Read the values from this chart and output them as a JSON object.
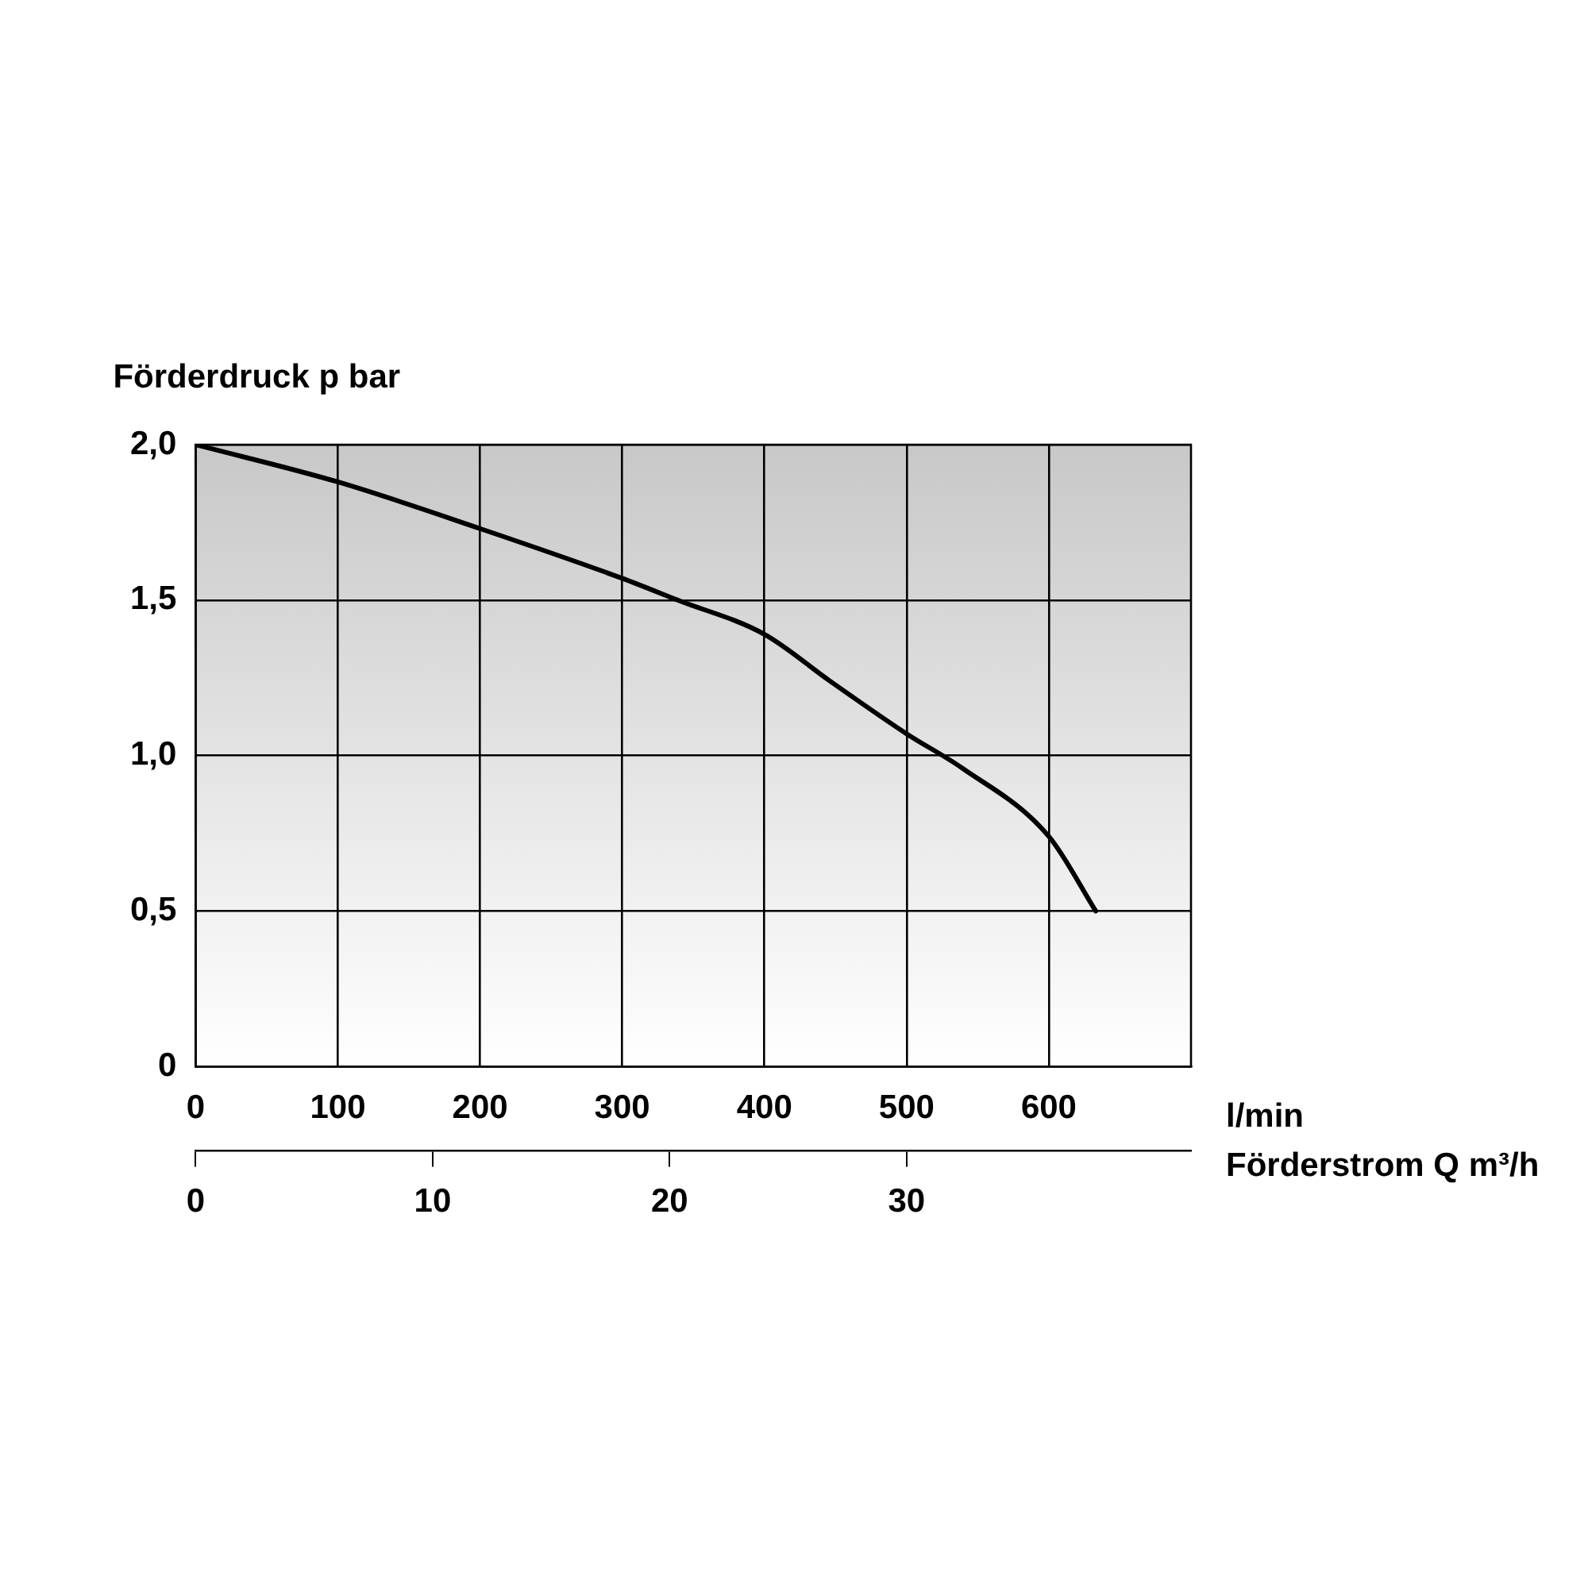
{
  "chart_data": {
    "type": "line",
    "xlabel": "l/min",
    "ylabel": "Förderdruck p bar",
    "x2label": "Förderstrom Q m³/h",
    "x": [
      0,
      100,
      200,
      300,
      339,
      400,
      446,
      500,
      539,
      600,
      633
    ],
    "series": [
      {
        "color": "#000000",
        "values": [
          2.0,
          1.88,
          1.73,
          1.57,
          1.5,
          1.39,
          1.24,
          1.07,
          0.96,
          0.74,
          0.5
        ]
      }
    ],
    "xlim": [
      0,
      700
    ],
    "xticks": [
      0,
      100,
      200,
      300,
      400,
      500,
      600
    ],
    "x2lim": [
      0,
      42
    ],
    "x2ticks": [
      0,
      10,
      20,
      30
    ],
    "ylim": [
      0,
      2.0
    ],
    "yticks": [
      {
        "value": 0,
        "label": "0"
      },
      {
        "value": 0.5,
        "label": "0,5"
      },
      {
        "value": 1.0,
        "label": "1,0"
      },
      {
        "value": 1.5,
        "label": "1,5"
      },
      {
        "value": 2.0,
        "label": "2,0"
      }
    ],
    "grid": true,
    "legend": false,
    "marker": "none",
    "line_style": "solid"
  }
}
